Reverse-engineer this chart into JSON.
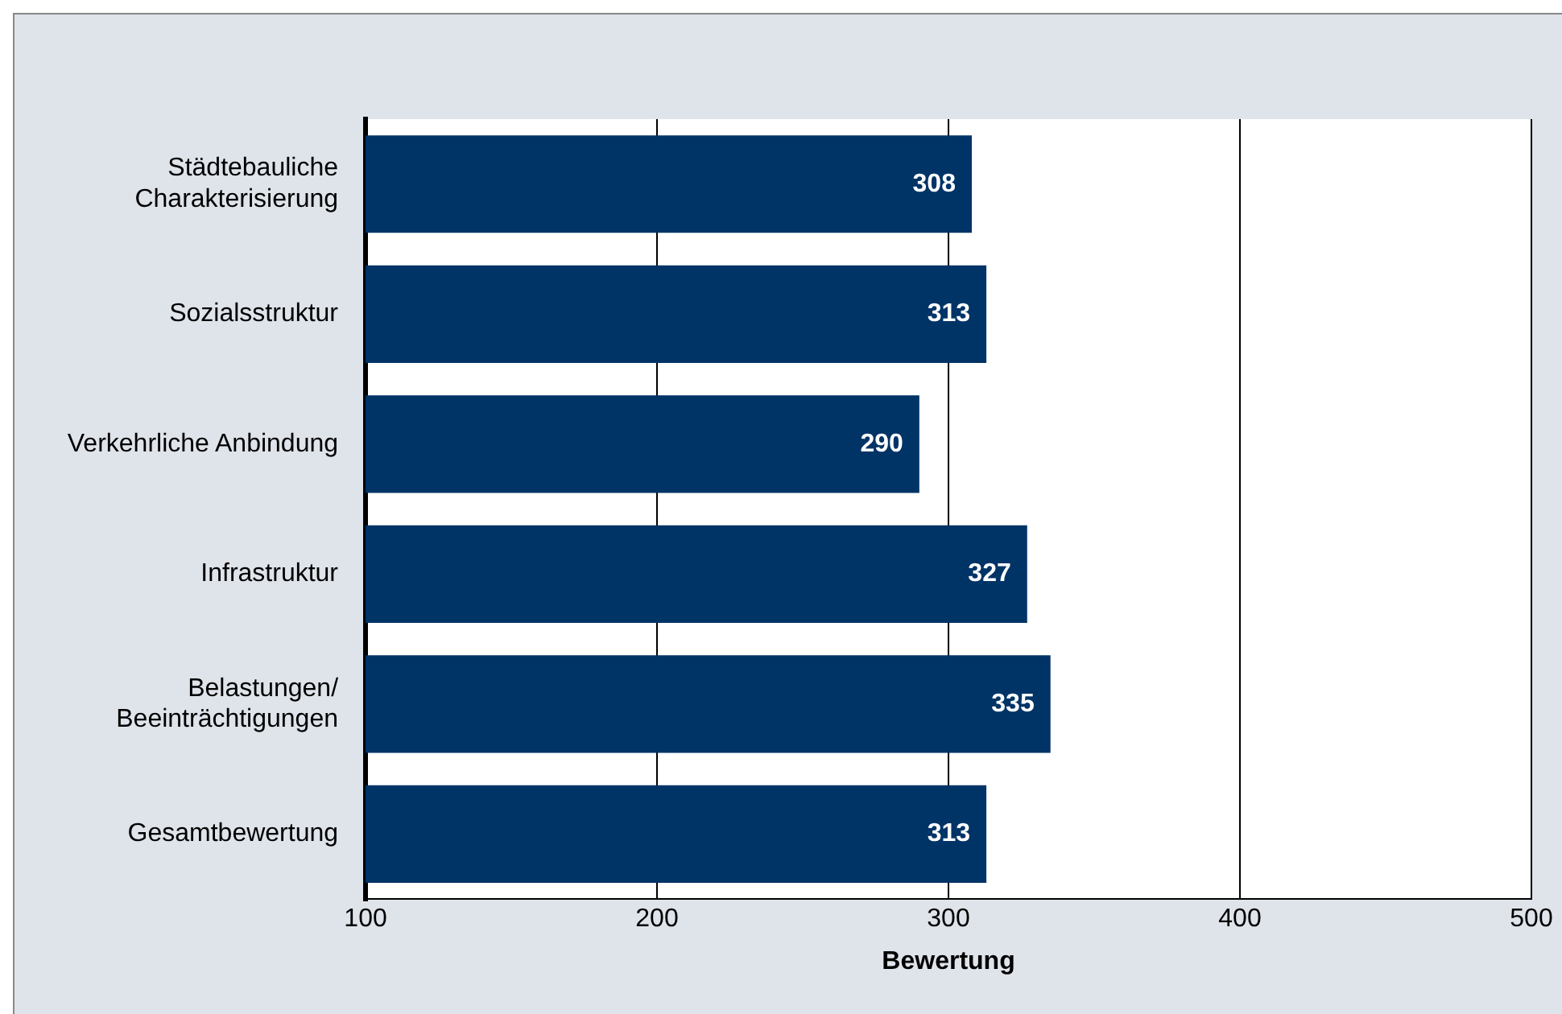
{
  "chart_data": {
    "type": "bar",
    "orientation": "horizontal",
    "xlabel": "Bewertung",
    "categories": [
      "Städtebauliche Charakterisierung",
      "Sozialsstruktur",
      "Verkehrliche Anbindung",
      "Infrastruktur",
      "Belastungen/Beeinträchtigungen",
      "Gesamtbewertung"
    ],
    "values": [
      308,
      313,
      290,
      327,
      335,
      313
    ],
    "color": "#003366",
    "xlim": [
      100,
      500
    ],
    "xticks": [
      100,
      200,
      300,
      400,
      500
    ],
    "grid": "x",
    "data_labels": true
  }
}
